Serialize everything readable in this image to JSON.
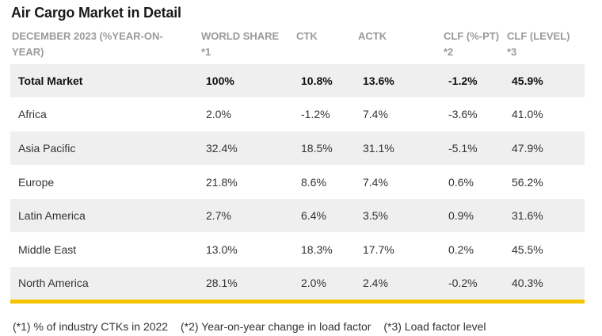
{
  "title": "Air Cargo Market in Detail",
  "table": {
    "headers": [
      "DECEMBER 2023 (%YEAR-ON-YEAR)",
      "WORLD SHARE *1",
      "CTK",
      "ACTK",
      "CLF (%-PT) *2",
      "CLF (LEVEL) *3"
    ],
    "rows": [
      {
        "region": "Total Market",
        "world_share": "100%",
        "ctk": "10.8%",
        "actk": "13.6%",
        "clf_pt": "-1.2%",
        "clf_level": "45.9%"
      },
      {
        "region": "Africa",
        "world_share": "2.0%",
        "ctk": "-1.2%",
        "actk": "7.4%",
        "clf_pt": "-3.6%",
        "clf_level": "41.0%"
      },
      {
        "region": "Asia Pacific",
        "world_share": "32.4%",
        "ctk": "18.5%",
        "actk": "31.1%",
        "clf_pt": "-5.1%",
        "clf_level": "47.9%"
      },
      {
        "region": "Europe",
        "world_share": "21.8%",
        "ctk": "8.6%",
        "actk": "7.4%",
        "clf_pt": "0.6%",
        "clf_level": "56.2%"
      },
      {
        "region": "Latin America",
        "world_share": "2.7%",
        "ctk": "6.4%",
        "actk": "3.5%",
        "clf_pt": "0.9%",
        "clf_level": "31.6%"
      },
      {
        "region": "Middle East",
        "world_share": "13.0%",
        "ctk": "18.3%",
        "actk": "17.7%",
        "clf_pt": "0.2%",
        "clf_level": "45.5%"
      },
      {
        "region": "North America",
        "world_share": "28.1%",
        "ctk": "2.0%",
        "actk": "2.4%",
        "clf_pt": "-0.2%",
        "clf_level": "40.3%"
      }
    ]
  },
  "footnotes": [
    "(*1) % of industry CTKs in 2022",
    "(*2) Year-on-year change in load factor",
    "(*3) Load factor level"
  ],
  "colors": {
    "accent": "#f5c400",
    "row_shade": "#efefef",
    "header_text": "#9a9a9a"
  }
}
